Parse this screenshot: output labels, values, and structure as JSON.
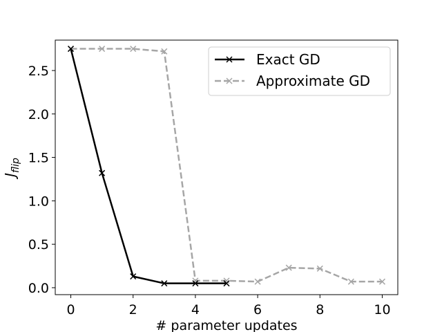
{
  "chart_data": {
    "type": "line",
    "title": "",
    "xlabel": "# parameter updates",
    "ylabel_main": "J",
    "ylabel_sub": "flip",
    "xlim": [
      -0.5,
      10.5
    ],
    "ylim": [
      -0.08,
      2.85
    ],
    "xticks": [
      0,
      2,
      4,
      6,
      8,
      10
    ],
    "xtick_labels": [
      "0",
      "2",
      "4",
      "6",
      "8",
      "10"
    ],
    "yticks": [
      0.0,
      0.5,
      1.0,
      1.5,
      2.0,
      2.5
    ],
    "ytick_labels": [
      "0.0",
      "0.5",
      "1.0",
      "1.5",
      "2.0",
      "2.5"
    ],
    "grid": false,
    "legend_position": "top-right",
    "series": [
      {
        "name": "Exact GD",
        "color": "#000000",
        "line_style": "solid",
        "marker": "x",
        "x": [
          0,
          1,
          2,
          3,
          4,
          5
        ],
        "y": [
          2.75,
          1.32,
          0.13,
          0.05,
          0.05,
          0.05
        ]
      },
      {
        "name": "Approximate GD",
        "color": "#a6a6a6",
        "line_style": "dashed",
        "marker": "x",
        "x": [
          0,
          1,
          2,
          3,
          4,
          5,
          6,
          7,
          8,
          9,
          10
        ],
        "y": [
          2.75,
          2.75,
          2.75,
          2.72,
          0.08,
          0.08,
          0.07,
          0.23,
          0.22,
          0.07,
          0.07
        ]
      }
    ]
  }
}
